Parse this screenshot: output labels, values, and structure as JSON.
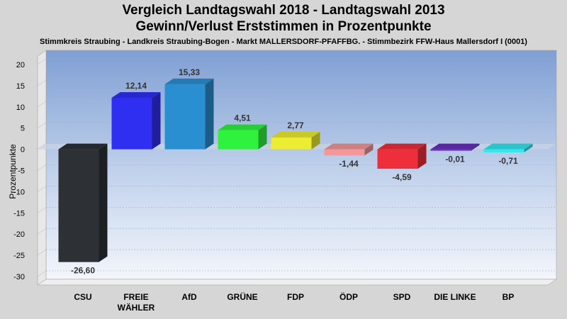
{
  "title_line1": "Vergleich Landtagswahl 2018 - Landtagswahl 2013",
  "title_line2": "Gewinn/Verlust Erststimmen in Prozentpunkte",
  "subtitle": "Stimmkreis Straubing - Landkreis Straubing-Bogen - Markt MALLERSDORF-PFAFFBG. - Stimmbezirk FFW-Haus Mallersdorf I (0001)",
  "chart_data": {
    "type": "bar",
    "ylabel": "Prozentpunkte",
    "ylim": [
      -32,
      22
    ],
    "yticks": [
      20,
      15,
      10,
      5,
      0,
      -5,
      -10,
      -15,
      -20,
      -25,
      -30
    ],
    "grid": true,
    "categories": [
      "CSU",
      "FREIE\nWÄHLER",
      "AfD",
      "GRÜNE",
      "FDP",
      "ÖDP",
      "SPD",
      "DIE LINKE",
      "BP"
    ],
    "values": [
      -26.6,
      12.14,
      15.33,
      4.51,
      2.77,
      -1.44,
      -4.59,
      -0.01,
      -0.71
    ],
    "value_labels": [
      "-26,60",
      "12,14",
      "15,33",
      "4,51",
      "2,77",
      "-1,44",
      "-4,59",
      "-0,01",
      "-0,71"
    ],
    "colors": [
      "#2d3136",
      "#2f2ff2",
      "#2a8fd0",
      "#2ef23e",
      "#ecec30",
      "#f29898",
      "#ee2e3a",
      "#6a2ec0",
      "#30e8ee"
    ]
  }
}
